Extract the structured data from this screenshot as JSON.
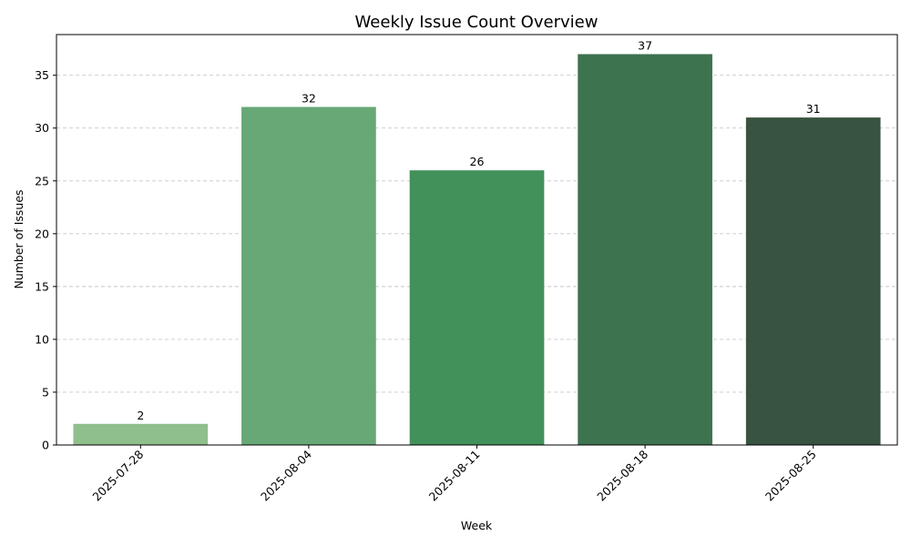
{
  "chart_data": {
    "type": "bar",
    "title": "Weekly Issue Count Overview",
    "xlabel": "Week",
    "ylabel": "Number of Issues",
    "categories": [
      "2025-07-28",
      "2025-08-04",
      "2025-08-11",
      "2025-08-18",
      "2025-08-25"
    ],
    "values": [
      2,
      32,
      26,
      37,
      31
    ],
    "bar_colors": [
      "#8fbf8c",
      "#68a876",
      "#43915a",
      "#3e734f",
      "#385341"
    ],
    "ylim": [
      0,
      38.85
    ],
    "yticks": [
      0,
      5,
      10,
      15,
      20,
      25,
      30,
      35
    ],
    "grid": {
      "y": true,
      "x": false,
      "style": "dashed",
      "color": "#c8c8c8"
    },
    "data_labels": true,
    "xtick_rotation": 45
  }
}
